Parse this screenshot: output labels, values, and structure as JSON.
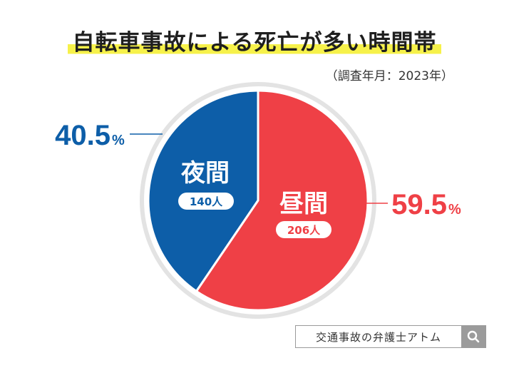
{
  "title": "自転車事故による死亡が多い時間帯",
  "subtitle": "（調査年月：2023年）",
  "chart_data": {
    "type": "pie",
    "title": "自転車事故による死亡が多い時間帯",
    "slices": [
      {
        "label": "昼間",
        "count_label": "206人",
        "count": 206,
        "percent": 59.5,
        "percent_text": "59.5",
        "unit": "%",
        "color": "#ef4046"
      },
      {
        "label": "夜間",
        "count_label": "140人",
        "count": 140,
        "percent": 40.5,
        "percent_text": "40.5",
        "unit": "%",
        "color": "#0d5ea8"
      }
    ]
  },
  "watermark": {
    "text": "交通事故の弁護士アトム",
    "icon": "search-icon"
  }
}
